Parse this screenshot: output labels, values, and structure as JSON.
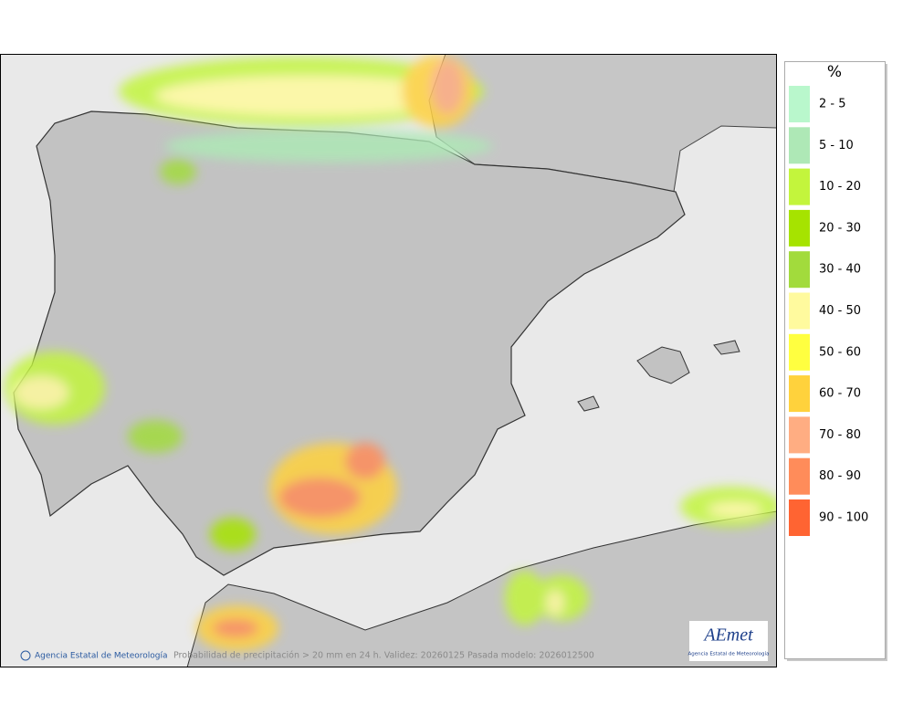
{
  "legend": {
    "title": "%",
    "items": [
      {
        "label": "2 - 5",
        "color": "#b9f7cc"
      },
      {
        "label": "5 - 10",
        "color": "#aee8b6"
      },
      {
        "label": "10 - 20",
        "color": "#c3f53c"
      },
      {
        "label": "20 - 30",
        "color": "#a6e300"
      },
      {
        "label": "30 - 40",
        "color": "#a2db3c"
      },
      {
        "label": "40 - 50",
        "color": "#fffa9e"
      },
      {
        "label": "50 - 60",
        "color": "#ffff40"
      },
      {
        "label": "60 - 70",
        "color": "#ffd23c"
      },
      {
        "label": "70 - 80",
        "color": "#ffad82"
      },
      {
        "label": "80 - 90",
        "color": "#ff8c5a"
      },
      {
        "label": "90 - 100",
        "color": "#ff6432"
      }
    ]
  },
  "footer": {
    "agency": "Agencia Estatal de Meteorología",
    "caption": "Probabilidad de precipitación > 20 mm en 24 h. Validez: 20260125 Pasada modelo: 2026012500"
  },
  "logo": {
    "name": "AEmet",
    "subtitle": "Agencia Estatal de Meteorología"
  }
}
